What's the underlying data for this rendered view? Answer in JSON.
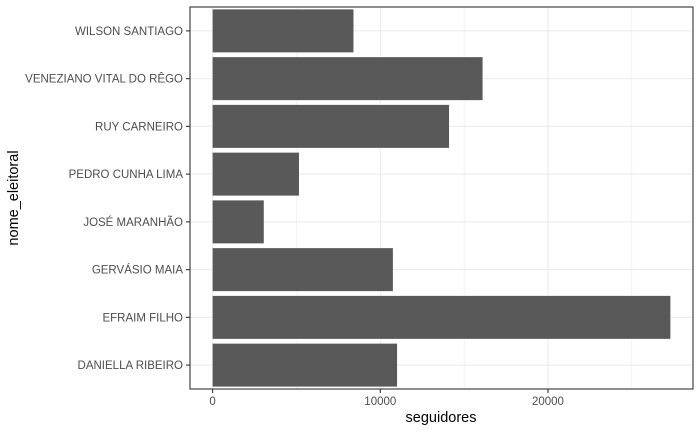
{
  "chart_data": {
    "type": "bar",
    "orientation": "horizontal",
    "xlabel": "seguidores",
    "ylabel": "nome_eleitoral",
    "xlim": [
      -1350,
      28650
    ],
    "xticks": [
      0,
      10000,
      20000
    ],
    "xtick_labels": [
      "0",
      "10000",
      "20000"
    ],
    "grid": true,
    "categories": [
      "DANIELLA RIBEIRO",
      "EFRAIM FILHO",
      "GERVÁSIO MAIA",
      "JOSÉ MARANHÃO",
      "PEDRO CUNHA LIMA",
      "RUY CARNEIRO",
      "VENEZIANO VITAL DO RÊGO",
      "WILSON SANTIAGO"
    ],
    "values": [
      11000,
      27300,
      10750,
      3050,
      5150,
      14100,
      16100,
      8400
    ],
    "bar_color": "#595959",
    "grid_color": "#ebebeb",
    "panel_border_color": "#333333"
  }
}
